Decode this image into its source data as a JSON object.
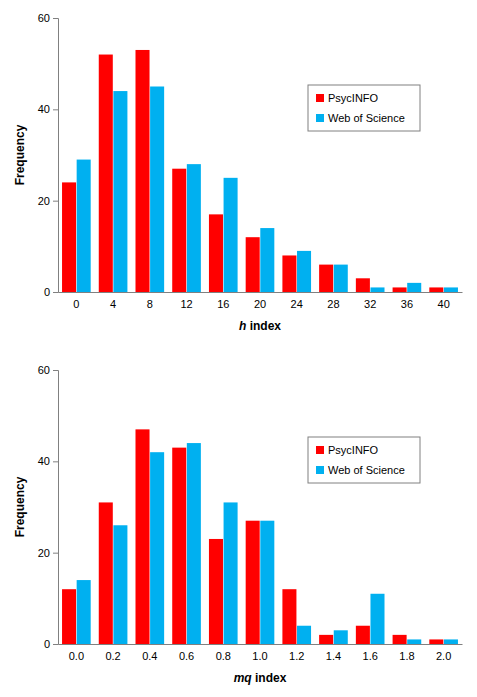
{
  "chart_data": [
    {
      "type": "bar",
      "x_label": "h index",
      "y_label": "Frequency",
      "categories": [
        "0",
        "4",
        "8",
        "12",
        "16",
        "20",
        "24",
        "28",
        "32",
        "36",
        "40"
      ],
      "series": [
        {
          "name": "PsycINFO",
          "color": "#ff0000",
          "values": [
            24,
            52,
            53,
            27,
            17,
            12,
            8,
            6,
            3,
            1,
            1
          ]
        },
        {
          "name": "Web of Science",
          "color": "#00b0f0",
          "values": [
            29,
            44,
            45,
            28,
            25,
            14,
            9,
            6,
            1,
            2,
            1
          ]
        }
      ],
      "ylim": [
        0,
        60
      ],
      "yticks": [
        0,
        20,
        40,
        60
      ],
      "legend": "upper right"
    },
    {
      "type": "bar",
      "x_label": "mq index",
      "y_label": "Frequency",
      "categories": [
        "0.0",
        "0.2",
        "0.4",
        "0.6",
        "0.8",
        "1.0",
        "1.2",
        "1.4",
        "1.6",
        "1.8",
        "2.0"
      ],
      "series": [
        {
          "name": "PsycINFO",
          "color": "#ff0000",
          "values": [
            12,
            31,
            47,
            43,
            23,
            27,
            12,
            2,
            4,
            2,
            1
          ]
        },
        {
          "name": "Web of Science",
          "color": "#00b0f0",
          "values": [
            14,
            26,
            42,
            44,
            31,
            27,
            4,
            3,
            11,
            1,
            1
          ]
        }
      ],
      "ylim": [
        0,
        60
      ],
      "yticks": [
        0,
        20,
        40,
        60
      ],
      "legend": "upper right"
    }
  ]
}
